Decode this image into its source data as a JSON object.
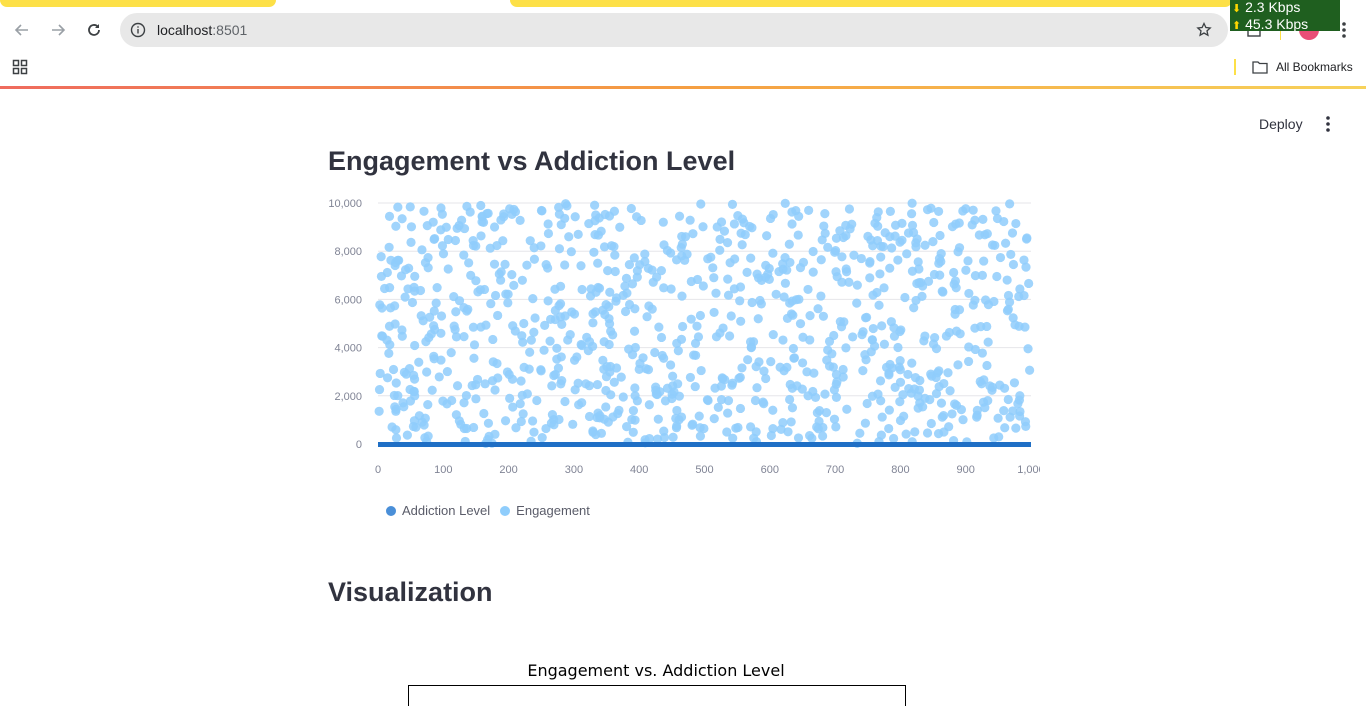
{
  "browser": {
    "url_host": "localhost",
    "url_port": ":8501",
    "bookmarks_label": "All Bookmarks",
    "net_down": "2.3 Kbps",
    "net_up": "45.3 Kbps"
  },
  "app": {
    "deploy_label": "Deploy",
    "section1_title": "Engagement vs Addiction Level",
    "section2_title": "Visualization",
    "mpl_title": "Engagement vs. Addiction Level"
  },
  "colors": {
    "addiction": "#1f6fc5",
    "engagement": "#8fcdfc"
  },
  "chart_data": {
    "type": "scatter",
    "title": "",
    "xlabel": "",
    "ylabel": "",
    "xlim": [
      0,
      1000
    ],
    "ylim": [
      0,
      10000
    ],
    "x_ticks": [
      "0",
      "100",
      "200",
      "300",
      "400",
      "500",
      "600",
      "700",
      "800",
      "900",
      "1,000"
    ],
    "y_ticks": [
      "0",
      "2,000",
      "4,000",
      "6,000",
      "8,000",
      "10,000"
    ],
    "grid": true,
    "legend_position": "bottom",
    "series": [
      {
        "name": "Addiction Level",
        "color": "#1f6fc5",
        "note_values": "flat band at 0-9 across x 0-1000",
        "x_range": [
          0,
          1000
        ],
        "y_value": 5
      },
      {
        "name": "Engagement",
        "color": "#8fcdfc",
        "points_count": 1000,
        "x_range": [
          0,
          1000
        ],
        "y_range": [
          0,
          10000
        ],
        "distribution": "uniform-random"
      }
    ]
  }
}
